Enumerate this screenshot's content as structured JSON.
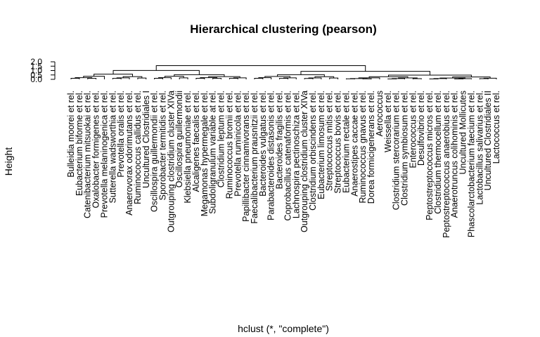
{
  "chart_data": {
    "type": "dendrogram",
    "title": "Hierarchical clustering (pearson)",
    "xlabel": "hclust (*, \"complete\")",
    "ylabel": "Height",
    "ylim": [
      0,
      2.0
    ],
    "yticks": [
      "0.0",
      "0.5",
      "1.0",
      "1.5",
      "2.0"
    ],
    "labels": [
      "Bulleidia moorei et rel.",
      "Eubacterium biforme et rel.",
      "Catenibacterium mitsuokai et rel.",
      "Oxalobacter formigenes et rel.",
      "Prevotella melaninogenica et rel.",
      "Sutterella wadsworthia et rel.",
      "Prevotella oralis et rel.",
      "Anaerovorax odorimutans et rel.",
      "Ruminococcus callidus et rel.",
      "Uncultured Clostridiales I",
      "Oscillospira guillermondii et rel.",
      "Sporobacter termitidis et rel.",
      "Outgrouping clostridium cluster XIVa",
      "Oscillospira guillermondii",
      "Klebsiella pneumoniae et rel.",
      "Alcaligenes faecalis et rel.",
      "Megamonas hypermegale et rel.",
      "Subdoligranulum variable at rel.",
      "Clostridium leptum et rel.",
      "Ruminococcus bromii et rel.",
      "Prevotella ruminicola et rel.",
      "Papillibacter cinnamivorans et rel.",
      "Faecalibacterium prausnitzii et rel.",
      "Bacteroides vulgatus et rel.",
      "Parabacteroides distasonis et rel.",
      "Bacteroides fragilis et rel.",
      "Coprobacillus catenaformis et rel.",
      "Lachnospira pectinoschiza et rel.",
      "Outgrouping clostridium cluster XIVa",
      "Clostridium orbiscindens et rel.",
      "Eubacterium limosum et rel.",
      "Streptococcus mitis et rel.",
      "Streptococcus bovis et rel.",
      "Eubacterium rectale et rel.",
      "Anaerostipes caccae et rel.",
      "Ruminococcus gnavus et rel.",
      "Dorea formicigenerans et rel.",
      "Aerococcus",
      "Weissella et rel.",
      "Clostridium stercorarium et rel.",
      "Clostridium symbiosum et rel.",
      "Enterococcus et rel.",
      "Desulfovibrio et rel.",
      "Peptostreptococcus micros et rel.",
      "Clostridium thermocellum et rel.",
      "Peptostreptococcus anaerobius et rel.",
      "Anaerotruncus colihominis et rel.",
      "Uncultured Mollicutes",
      "Phascolarctobacterium faecium et rel.",
      "Lactobacillus salivarius et rel.",
      "Uncultured Clostridiales II",
      "Lactococcus et rel."
    ]
  }
}
